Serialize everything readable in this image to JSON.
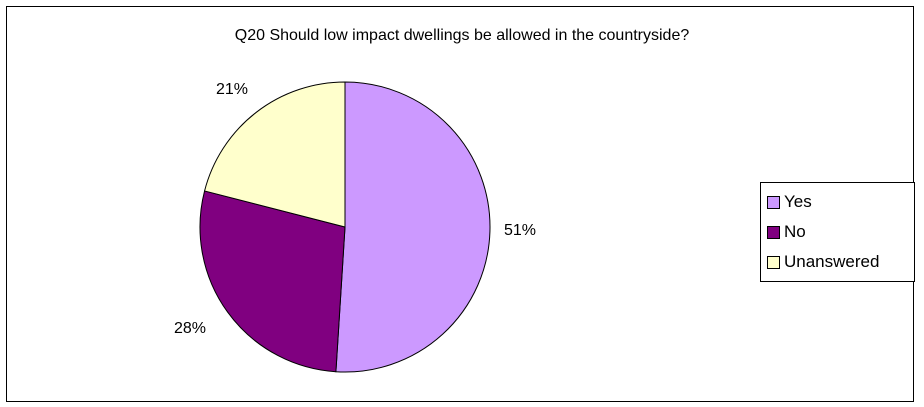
{
  "chart_data": {
    "type": "pie",
    "title": "Q20 Should low impact dwellings be allowed in the countryside?",
    "slices": [
      {
        "label": "Yes",
        "value": 51,
        "display": "51%",
        "color": "#cc99ff"
      },
      {
        "label": "No",
        "value": 28,
        "display": "28%",
        "color": "#800080"
      },
      {
        "label": "Unanswered",
        "value": 21,
        "display": "21%",
        "color": "#ffffcc"
      }
    ],
    "legend_position": "right"
  }
}
